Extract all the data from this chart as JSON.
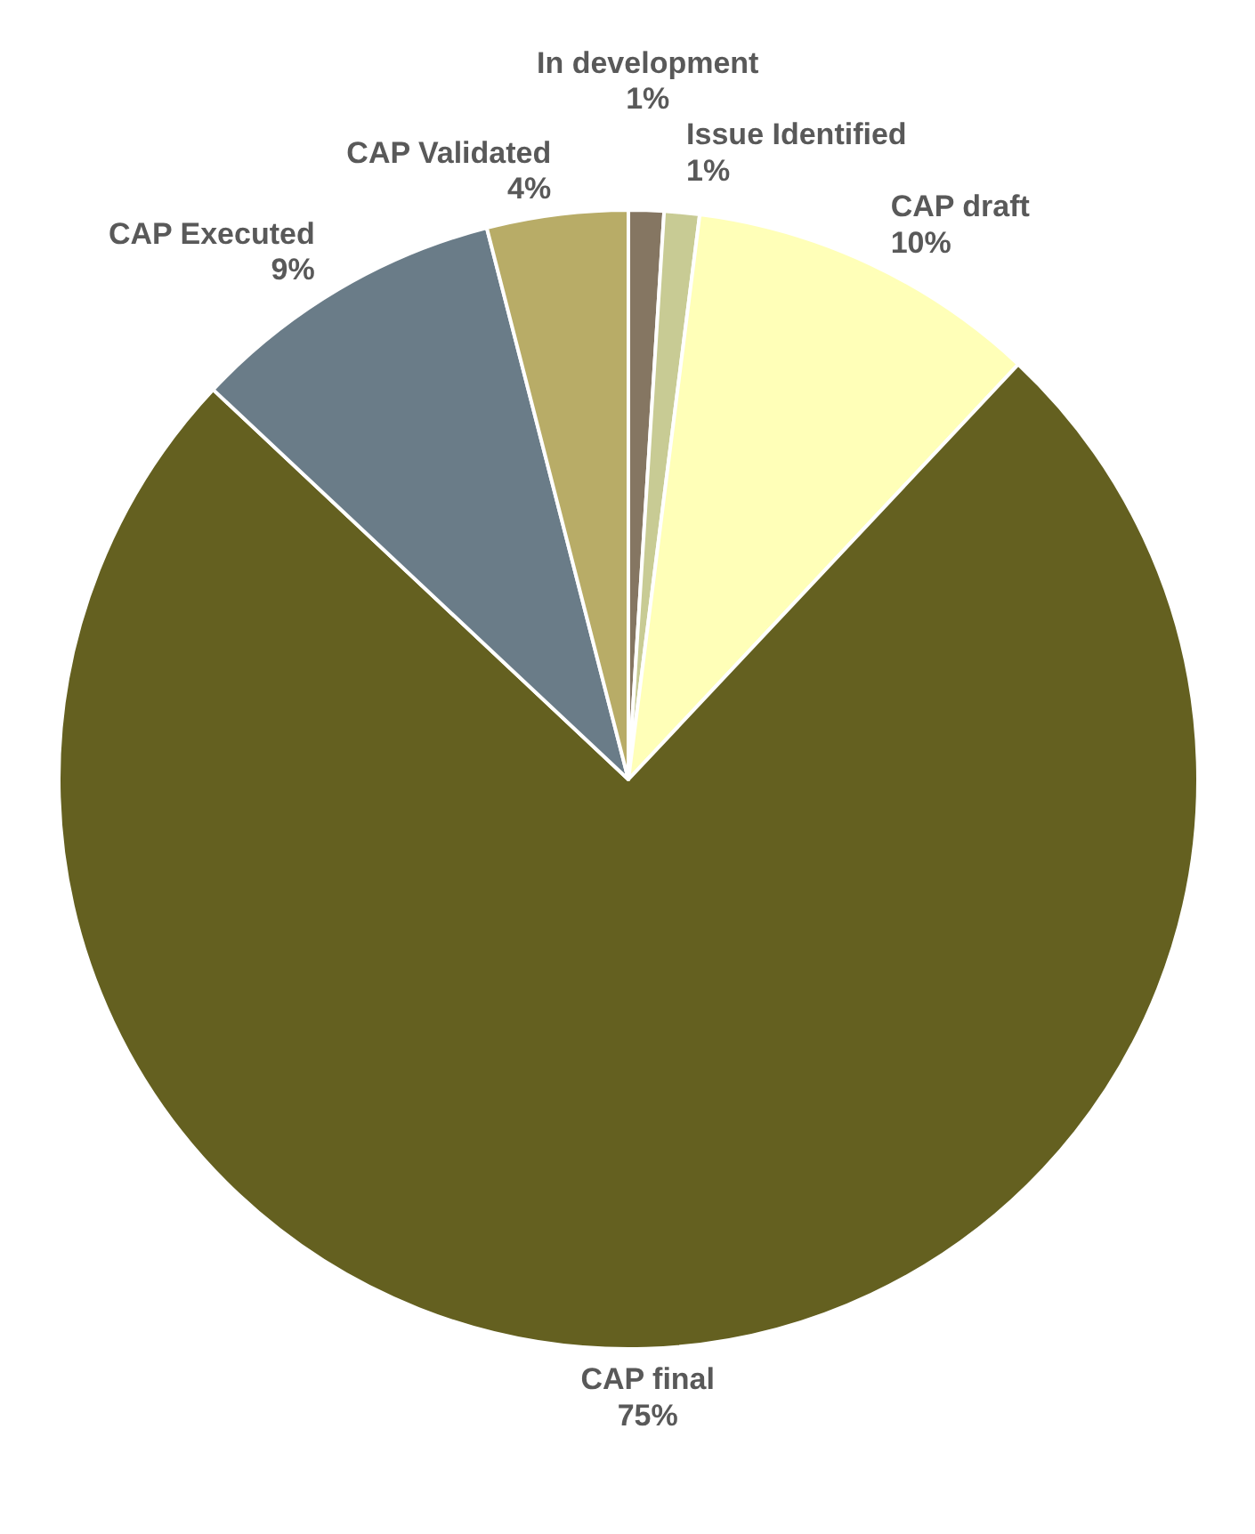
{
  "chart_data": {
    "type": "pie",
    "categories": [
      "In development",
      "Issue Identified",
      "CAP draft",
      "CAP final",
      "CAP Executed",
      "CAP Validated"
    ],
    "values": [
      1,
      1,
      10,
      75,
      9,
      4
    ],
    "colors": [
      "#857662",
      "#c8cb94",
      "#ffffb8",
      "#646020",
      "#6a7c88",
      "#b8ac67"
    ],
    "value_labels": [
      "1%",
      "1%",
      "10%",
      "75%",
      "9%",
      "4%"
    ],
    "legend": false
  }
}
